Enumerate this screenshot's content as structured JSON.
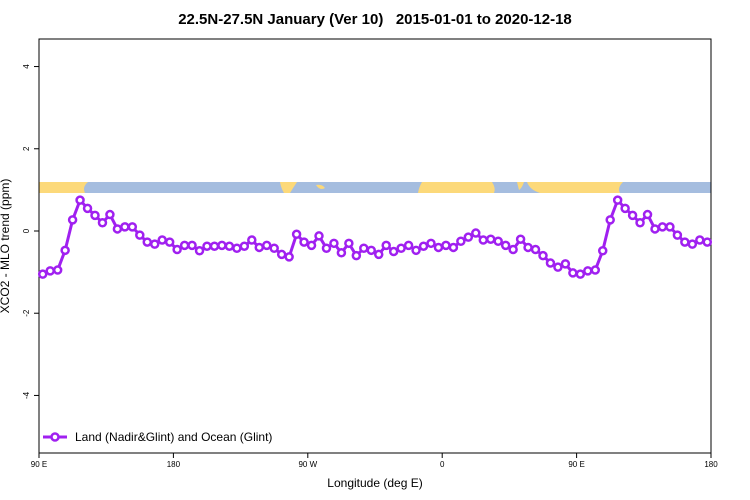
{
  "chart_data": {
    "type": "line",
    "title": "22.5N-27.5N January (Ver 10)   2015-01-01 to 2020-12-18",
    "xlabel": "Longitude (deg E)",
    "ylabel": "XCO2 - MLO trend (ppm)",
    "xlim": [
      90,
      540
    ],
    "xticks": [
      {
        "value": 90,
        "label": "90 E"
      },
      180,
      {
        "value": 270,
        "label": "90 W"
      },
      {
        "value": 360,
        "label": "0"
      },
      {
        "value": 450,
        "label": "90 E"
      },
      {
        "value": 540,
        "label": "180"
      }
    ],
    "ylim": [
      -5.4,
      4.67
    ],
    "yticks": [
      -4,
      -2,
      0,
      2,
      4
    ],
    "legend": "bottom-left",
    "x": [
      92.5,
      97.5,
      102.5,
      107.5,
      112.5,
      117.5,
      122.5,
      127.5,
      132.5,
      137.5,
      142.5,
      147.5,
      152.5,
      157.5,
      162.5,
      167.5,
      172.5,
      177.5,
      182.5,
      187.5,
      192.5,
      197.5,
      202.5,
      207.5,
      212.5,
      217.5,
      222.5,
      227.5,
      232.5,
      237.5,
      242.5,
      247.5,
      252.5,
      257.5,
      262.5,
      267.5,
      272.5,
      277.5,
      282.5,
      287.5,
      292.5,
      297.5,
      302.5,
      307.5,
      312.5,
      317.5,
      322.5,
      327.5,
      332.5,
      337.5,
      342.5,
      347.5,
      352.5,
      357.5,
      362.5,
      367.5,
      372.5,
      377.5,
      382.5,
      387.5,
      392.5,
      397.5,
      402.5,
      407.5,
      412.5,
      417.5,
      422.5,
      427.5,
      432.5,
      437.5,
      442.5,
      447.5,
      452.5,
      457.5,
      462.5,
      467.5,
      472.5,
      477.5,
      482.5,
      487.5,
      492.5,
      497.5,
      502.5,
      507.5,
      512.5,
      517.5,
      522.5,
      527.5,
      532.5,
      537.5
    ],
    "series": [
      {
        "name": "Land (Nadir&Glint) and Ocean (Glint)",
        "color": "#a020f0",
        "values": [
          -1.05,
          -0.97,
          -0.95,
          -0.47,
          0.27,
          0.75,
          0.55,
          0.38,
          0.2,
          0.4,
          0.05,
          0.1,
          0.1,
          -0.1,
          -0.27,
          -0.32,
          -0.22,
          -0.27,
          -0.45,
          -0.35,
          -0.35,
          -0.48,
          -0.37,
          -0.37,
          -0.35,
          -0.37,
          -0.42,
          -0.37,
          -0.22,
          -0.4,
          -0.35,
          -0.42,
          -0.57,
          -0.63,
          -0.08,
          -0.27,
          -0.35,
          -0.12,
          -0.42,
          -0.3,
          -0.53,
          -0.3,
          -0.6,
          -0.42,
          -0.47,
          -0.57,
          -0.35,
          -0.5,
          -0.42,
          -0.35,
          -0.47,
          -0.37,
          -0.3,
          -0.4,
          -0.35,
          -0.4,
          -0.25,
          -0.15,
          -0.05,
          -0.22,
          -0.2,
          -0.25,
          -0.35,
          -0.45,
          -0.2,
          -0.4,
          -0.45,
          -0.6,
          -0.78,
          -0.88,
          -0.8,
          -1.02,
          -1.05,
          -0.97,
          -0.95,
          -0.48,
          0.27,
          0.75,
          0.55,
          0.38,
          0.2,
          0.4,
          0.05,
          0.1,
          0.1,
          -0.1,
          -0.27,
          -0.32,
          -0.22,
          -0.27
        ]
      }
    ]
  }
}
